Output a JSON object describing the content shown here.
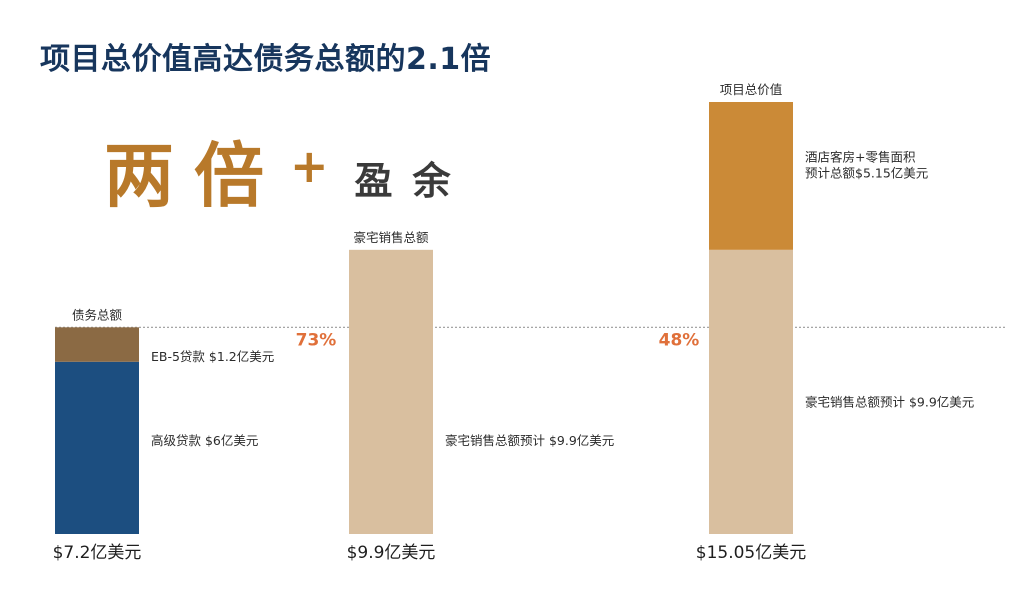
{
  "title": "项目总价值高达债务总额的2.1倍",
  "headline": {
    "big": "两倍",
    "plus": "+",
    "small": "盈余"
  },
  "colors": {
    "senior_loan": "#1c4e80",
    "eb5_loan": "#8b6a44",
    "luxury_sales": "#d9bf9f",
    "hotel_retail": "#cb8a37",
    "percent": "#e0703a",
    "reference_line": "#9a9a9a"
  },
  "chart_data": {
    "type": "bar",
    "stacked": true,
    "unit": "亿美元",
    "ylim": [
      0,
      15.05
    ],
    "reference_line": 7.2,
    "categories": [
      "债务总额",
      "豪宅销售总额",
      "项目总价值"
    ],
    "totals": [
      "$7.2亿美元",
      "$9.9亿美元",
      "$15.05亿美元"
    ],
    "total_values": [
      7.2,
      9.9,
      15.05
    ],
    "percent_labels": [
      "73%",
      "48%"
    ],
    "series": [
      {
        "name": "高级贷款",
        "values": [
          6,
          0,
          0
        ],
        "color_key": "senior_loan",
        "labels": [
          "高级贷款 $6亿美元",
          "",
          ""
        ]
      },
      {
        "name": "EB-5贷款",
        "values": [
          1.2,
          0,
          0
        ],
        "color_key": "eb5_loan",
        "labels": [
          "EB-5贷款 $1.2亿美元",
          "",
          ""
        ]
      },
      {
        "name": "豪宅销售",
        "values": [
          0,
          9.9,
          9.9
        ],
        "color_key": "luxury_sales",
        "labels": [
          "",
          "豪宅销售总额预计 $9.9亿美元",
          "豪宅销售总额预计 $9.9亿美元"
        ]
      },
      {
        "name": "酒店客房+零售面积",
        "values": [
          0,
          0,
          5.15
        ],
        "color_key": "hotel_retail",
        "labels": [
          "",
          "",
          "酒店客房+零售面积\n预计总额$5.15亿美元"
        ]
      }
    ]
  }
}
